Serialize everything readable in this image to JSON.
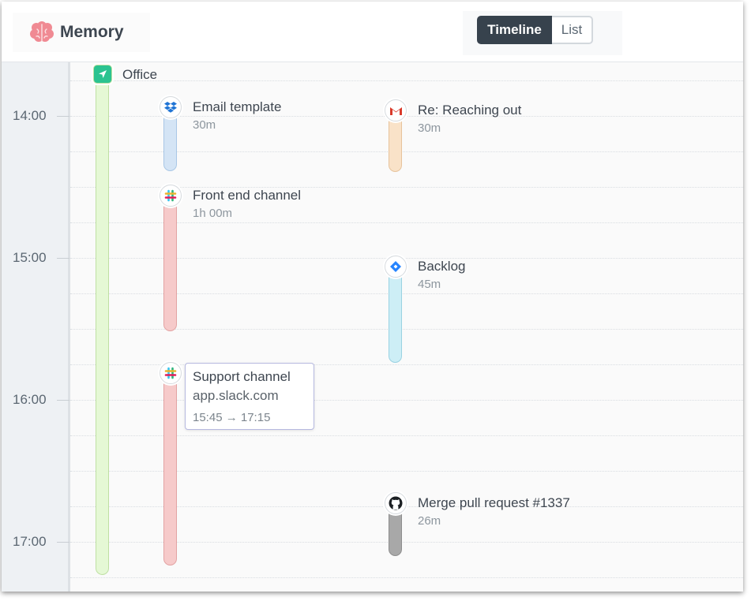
{
  "app": {
    "title": "Memory",
    "logo_icon": "brain-icon",
    "logo_color": "#f08a93"
  },
  "view_toggle": {
    "options": [
      "Timeline",
      "List"
    ],
    "selected": "Timeline"
  },
  "timeline": {
    "time_ticks": [
      "14:00",
      "15:00",
      "16:00",
      "17:00"
    ],
    "location": {
      "name": "Office",
      "icon": "location-arrow-icon",
      "color": "#e5f8d5"
    },
    "events": [
      {
        "title": "Email template",
        "duration": "30m",
        "app_icon": "dropbox-icon",
        "color": "#d4e4f5"
      },
      {
        "title": "Re: Reaching out",
        "duration": "30m",
        "app_icon": "gmail-icon",
        "color": "#f9e2c8"
      },
      {
        "title": "Front end channel",
        "duration": "1h 00m",
        "app_icon": "slack-icon",
        "color": "#f6caca"
      },
      {
        "title": "Backlog",
        "duration": "45m",
        "app_icon": "jira-icon",
        "color": "#cdeef6"
      },
      {
        "title": "Support channel",
        "duration": "",
        "app_icon": "slack-icon",
        "color": "#f6caca"
      },
      {
        "title": "Merge pull request #1337",
        "duration": "26m",
        "app_icon": "github-icon",
        "color": "#a8a8a8"
      }
    ],
    "tooltip": {
      "title": "Support channel",
      "host": "app.slack.com",
      "range": "15:45 → 17:15"
    }
  }
}
